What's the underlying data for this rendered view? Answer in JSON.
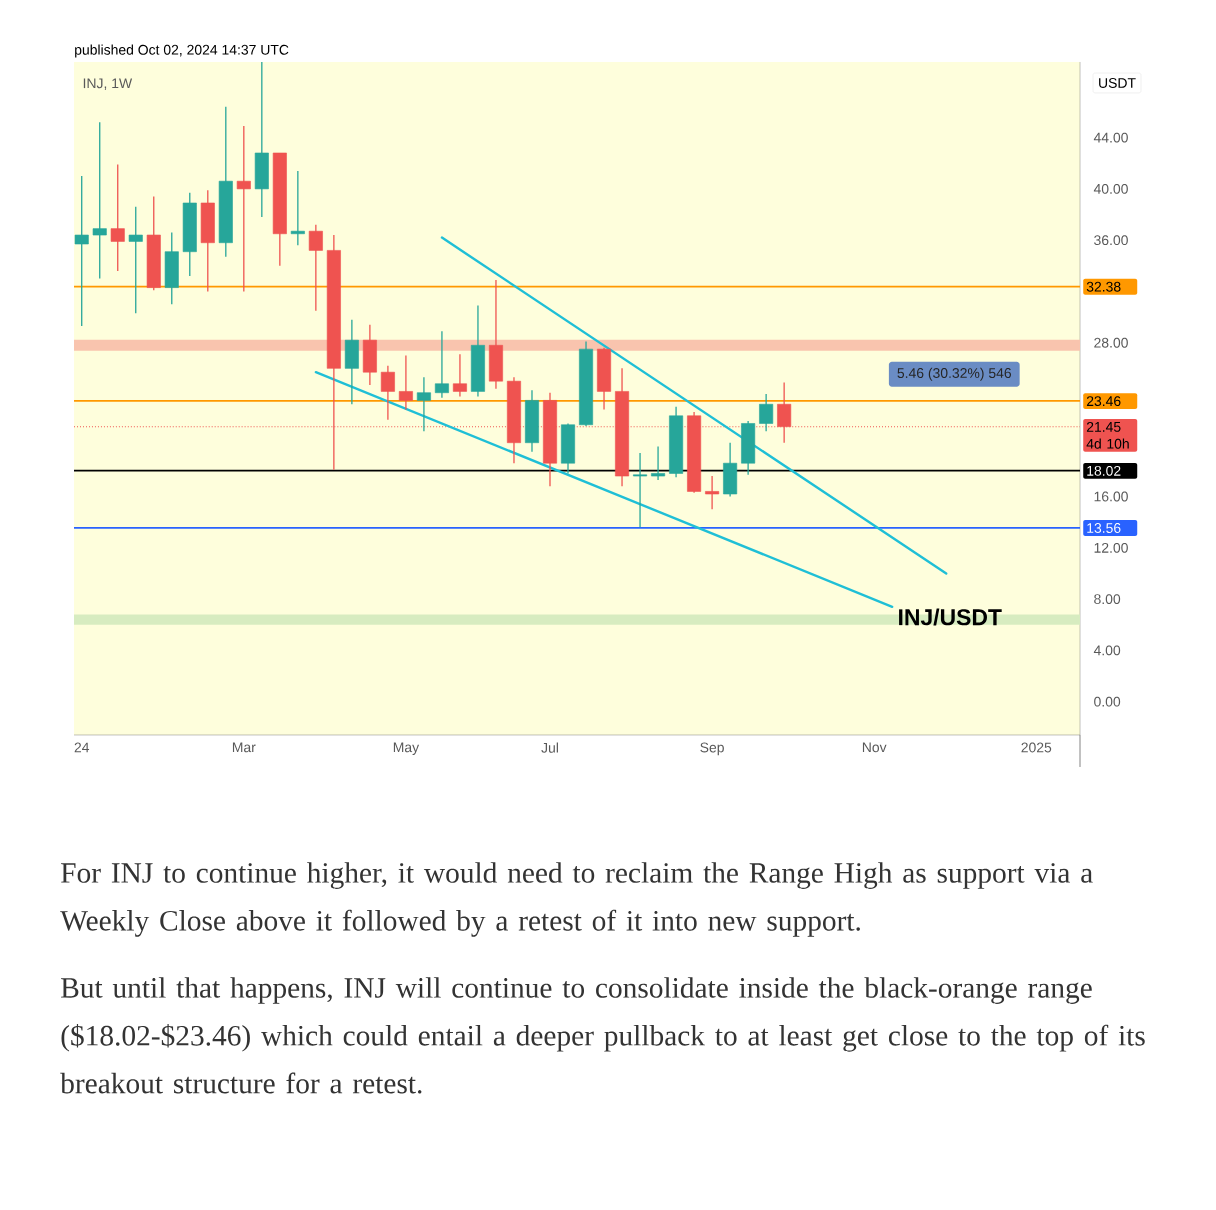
{
  "chart_data": {
    "type": "candlestick",
    "title": "INJ, 1W",
    "subtitle": "published Oct 02, 2024 14:37 UTC",
    "ylabel": "USDT",
    "x": [
      "2024-01-01",
      "2024-01-08",
      "2024-01-15",
      "2024-01-22",
      "2024-01-29",
      "2024-02-05",
      "2024-02-12",
      "2024-02-19",
      "2024-02-26",
      "2024-03-04",
      "2024-03-11",
      "2024-03-18",
      "2024-03-25",
      "2024-04-01",
      "2024-04-08",
      "2024-04-15",
      "2024-04-22",
      "2024-04-29",
      "2024-05-06",
      "2024-05-13",
      "2024-05-20",
      "2024-05-27",
      "2024-06-03",
      "2024-06-10",
      "2024-06-17",
      "2024-06-24",
      "2024-07-01",
      "2024-07-08",
      "2024-07-15",
      "2024-07-22",
      "2024-07-29",
      "2024-08-05",
      "2024-08-12",
      "2024-08-19",
      "2024-08-26",
      "2024-09-02",
      "2024-09-09",
      "2024-09-16",
      "2024-09-23",
      "2024-09-30"
    ],
    "ohlc": [
      [
        35.7,
        41.0,
        29.3,
        36.4
      ],
      [
        36.4,
        45.2,
        33.0,
        36.9
      ],
      [
        36.9,
        41.9,
        33.6,
        35.9
      ],
      [
        35.9,
        38.6,
        30.3,
        36.4
      ],
      [
        36.4,
        39.4,
        32.1,
        32.3
      ],
      [
        32.3,
        36.6,
        31.0,
        35.1
      ],
      [
        35.1,
        39.7,
        33.2,
        38.9
      ],
      [
        38.9,
        39.9,
        32.0,
        35.8
      ],
      [
        35.8,
        46.4,
        34.7,
        40.6
      ],
      [
        40.6,
        44.9,
        32.0,
        40.0
      ],
      [
        40.0,
        49.9,
        37.8,
        42.8
      ],
      [
        42.8,
        42.8,
        34.0,
        36.5
      ],
      [
        36.5,
        41.4,
        35.6,
        36.7
      ],
      [
        36.7,
        37.2,
        30.5,
        35.2
      ],
      [
        35.2,
        36.4,
        18.1,
        26.0
      ],
      [
        26.0,
        29.8,
        23.2,
        28.2
      ],
      [
        28.2,
        29.4,
        24.7,
        25.7
      ],
      [
        25.7,
        26.2,
        22.0,
        24.2
      ],
      [
        24.2,
        27.0,
        22.8,
        23.5
      ],
      [
        23.5,
        25.3,
        21.1,
        24.1
      ],
      [
        24.1,
        28.9,
        23.7,
        24.8
      ],
      [
        24.8,
        27.1,
        23.8,
        24.2
      ],
      [
        24.2,
        30.9,
        23.8,
        27.8
      ],
      [
        27.8,
        32.9,
        24.4,
        25.0
      ],
      [
        25.0,
        25.3,
        18.6,
        20.2
      ],
      [
        20.2,
        24.3,
        19.5,
        23.5
      ],
      [
        23.5,
        24.1,
        16.8,
        18.6
      ],
      [
        18.6,
        21.7,
        17.8,
        21.6
      ],
      [
        21.6,
        28.1,
        21.5,
        27.5
      ],
      [
        27.5,
        27.6,
        22.8,
        24.2
      ],
      [
        24.2,
        26.0,
        16.8,
        17.6
      ],
      [
        17.6,
        19.4,
        13.6,
        17.7
      ],
      [
        17.6,
        19.9,
        17.3,
        17.8
      ],
      [
        17.8,
        23.0,
        17.5,
        22.3
      ],
      [
        22.3,
        22.6,
        16.3,
        16.4
      ],
      [
        16.4,
        17.6,
        15.0,
        16.2
      ],
      [
        16.2,
        20.2,
        16.0,
        18.6
      ],
      [
        18.6,
        21.9,
        17.7,
        21.7
      ],
      [
        21.7,
        24.0,
        21.1,
        23.2
      ],
      [
        23.2,
        24.9,
        20.2,
        21.45
      ]
    ],
    "xlim": [
      "2023-12-29",
      "2025-01-23"
    ],
    "xticks": [
      {
        "value": "2024-01-01",
        "label": "24"
      },
      {
        "value": "2024-03-04",
        "label": "Mar"
      },
      {
        "value": "2024-05-06",
        "label": "May"
      },
      {
        "value": "2024-07-01",
        "label": "Jul"
      },
      {
        "value": "2024-09-02",
        "label": "Sep"
      },
      {
        "value": "2024-11-04",
        "label": "Nov"
      },
      {
        "value": "2025-01-06",
        "label": "2025"
      }
    ],
    "ylim": [
      -2.6,
      49.9
    ],
    "yticks": [
      {
        "value": 0,
        "label": "0.00"
      },
      {
        "value": 4,
        "label": "4.00"
      },
      {
        "value": 8,
        "label": "8.00"
      },
      {
        "value": 12,
        "label": "12.00"
      },
      {
        "value": 16,
        "label": "16.00"
      },
      {
        "value": 28,
        "label": "28.00"
      },
      {
        "value": 36,
        "label": "36.00"
      },
      {
        "value": 40,
        "label": "40.00"
      },
      {
        "value": 44,
        "label": "44.00"
      }
    ],
    "bands": [
      {
        "axis": "y",
        "from": 27.38,
        "to": 28.24,
        "color": "#f9c4ae"
      },
      {
        "axis": "y",
        "from": 6.0,
        "to": 6.8,
        "color": "#d7ecc0"
      }
    ],
    "ref_lines": [
      {
        "axis": "y",
        "value": 32.38,
        "label": "32.38",
        "color": "#ff9800"
      },
      {
        "axis": "y",
        "value": 23.46,
        "label": "23.46",
        "color": "#ff9800"
      },
      {
        "axis": "y",
        "value": 21.45,
        "label": "21.45 4d 10h",
        "color": "#ef5350",
        "line_style": "dotted"
      },
      {
        "axis": "y",
        "value": 18.02,
        "label": "18.02",
        "color": "#000000"
      },
      {
        "axis": "y",
        "value": 13.56,
        "label": "13.56",
        "color": "#2962ff"
      }
    ],
    "series": [
      {
        "type": "line",
        "color": "#1fbfd6",
        "x": [
          "2024-05-20",
          "2024-12-02"
        ],
        "values": [
          36.2,
          10.0
        ]
      },
      {
        "type": "line",
        "color": "#1fbfd6",
        "x": [
          "2024-04-01",
          "2024-11-11"
        ],
        "values": [
          25.7,
          7.4
        ]
      }
    ],
    "annotations": [
      "5.46 (30.32%) 546",
      {
        "text": "INJ/USDT",
        "x": "2024-11-13",
        "y": 6.6
      },
      "For INJ to continue higher, it would need to reclaim the Range High as support via a Weekly Close above it followed by a retest of it into new support.",
      "But until that happens, INJ will continue to consolidate inside the black-orange range ($18.02-$23.46) which could entail a deeper pullback to at least get close to the top of its breakout structure for a retest."
    ]
  }
}
